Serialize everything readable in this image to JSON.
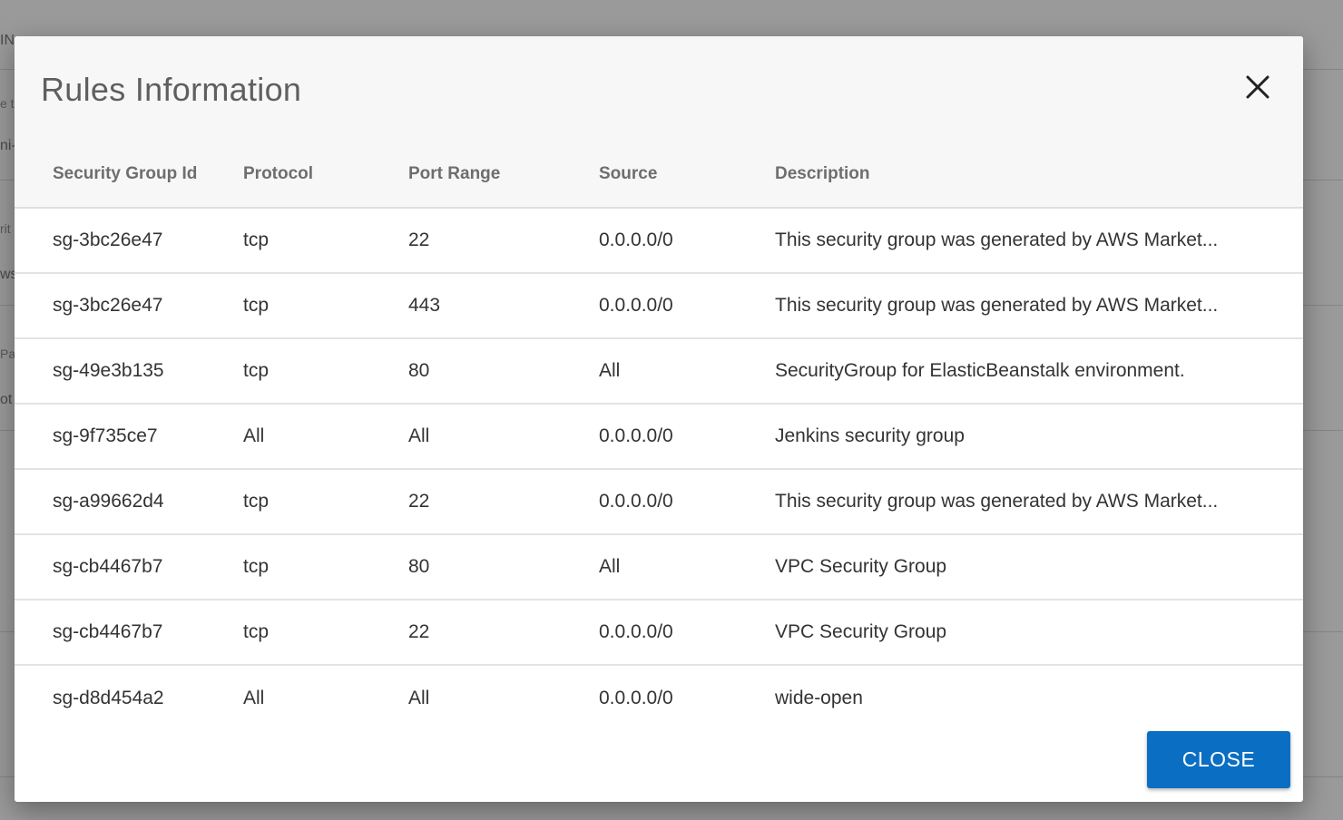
{
  "background": {
    "fragments": [
      "IN",
      "e t",
      "ni-",
      "rit",
      "ws",
      "Pai",
      "ot"
    ]
  },
  "modal": {
    "title": "Rules Information",
    "close_icon": "close-icon",
    "close_button_label": "CLOSE",
    "accent_color": "#0a6fc2"
  },
  "table": {
    "headers": [
      "Security Group Id",
      "Protocol",
      "Port Range",
      "Source",
      "Description"
    ],
    "rows": [
      [
        "sg-3bc26e47",
        "tcp",
        "22",
        "0.0.0.0/0",
        "This security group was generated by AWS Market..."
      ],
      [
        "sg-3bc26e47",
        "tcp",
        "443",
        "0.0.0.0/0",
        "This security group was generated by AWS Market..."
      ],
      [
        "sg-49e3b135",
        "tcp",
        "80",
        "All",
        "SecurityGroup for ElasticBeanstalk environment."
      ],
      [
        "sg-9f735ce7",
        "All",
        "All",
        "0.0.0.0/0",
        "Jenkins security group"
      ],
      [
        "sg-a99662d4",
        "tcp",
        "22",
        "0.0.0.0/0",
        "This security group was generated by AWS Market..."
      ],
      [
        "sg-cb4467b7",
        "tcp",
        "80",
        "All",
        "VPC Security Group"
      ],
      [
        "sg-cb4467b7",
        "tcp",
        "22",
        "0.0.0.0/0",
        "VPC Security Group"
      ],
      [
        "sg-d8d454a2",
        "All",
        "All",
        "0.0.0.0/0",
        "wide-open"
      ]
    ]
  }
}
